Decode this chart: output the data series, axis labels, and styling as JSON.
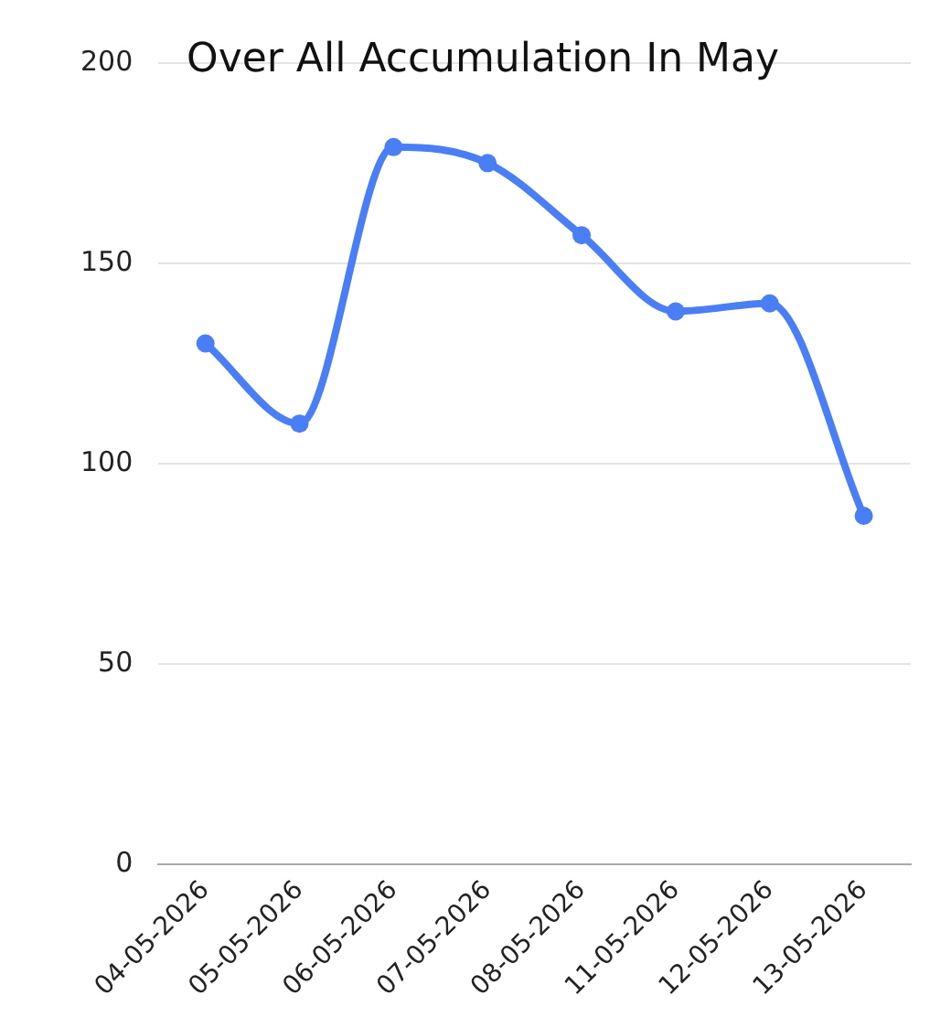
{
  "chart_data": {
    "type": "line",
    "title": "Over All Accumulation In May",
    "categories": [
      "04-05-2026",
      "05-05-2026",
      "06-05-2026",
      "07-05-2026",
      "08-05-2026",
      "11-05-2026",
      "12-05-2026",
      "13-05-2026"
    ],
    "series": [
      {
        "color": "#4a7ef5",
        "values": [
          130,
          110,
          179,
          175,
          157,
          138,
          140,
          87
        ]
      }
    ],
    "ylim": [
      0,
      200
    ],
    "yticks": [
      0,
      50,
      100,
      150,
      200
    ],
    "grid": "y",
    "legend": false,
    "marker": "circle",
    "line_style": "solid"
  }
}
